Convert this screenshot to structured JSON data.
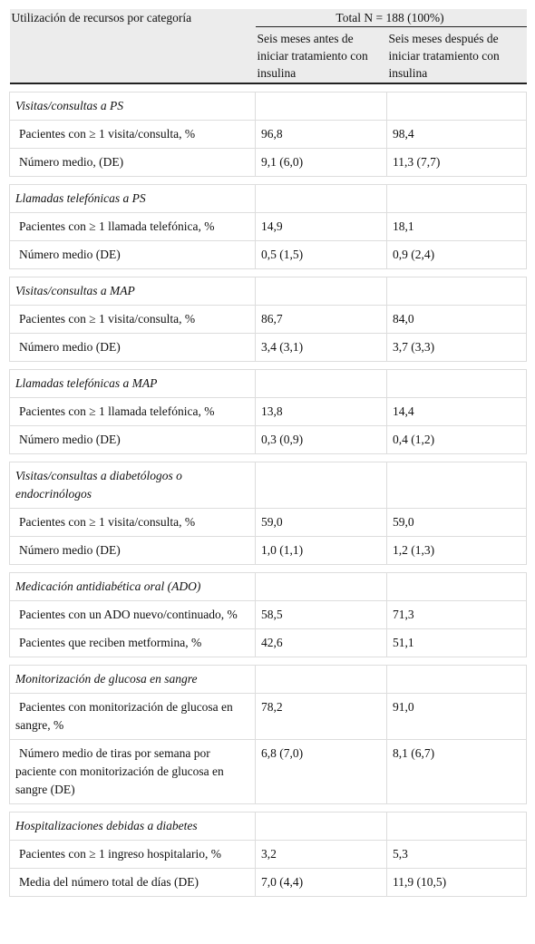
{
  "header": {
    "category": "Utilización de recursos por categoría",
    "total": "Total N = 188 (100%)",
    "before": "Seis meses antes de iniciar tratamiento con insulina",
    "after": "Seis meses después de iniciar tratamiento con insulina"
  },
  "sections": [
    {
      "title": "Visitas/consultas a PS",
      "rows": [
        [
          "Pacientes con ≥ 1 visita/consulta, %",
          "96,8",
          "98,4"
        ],
        [
          "Número medio, (DE)",
          "9,1 (6,0)",
          "11,3 (7,7)"
        ]
      ]
    },
    {
      "title": "Llamadas telefónicas a PS",
      "rows": [
        [
          "Pacientes con ≥ 1 llamada telefónica, %",
          "14,9",
          "18,1"
        ],
        [
          "Número medio (DE)",
          "0,5 (1,5)",
          "0,9 (2,4)"
        ]
      ]
    },
    {
      "title": "Visitas/consultas a MAP",
      "rows": [
        [
          "Pacientes con ≥ 1 visita/consulta, %",
          "86,7",
          "84,0"
        ],
        [
          "Número medio (DE)",
          "3,4 (3,1)",
          "3,7 (3,3)"
        ]
      ]
    },
    {
      "title": "Llamadas telefónicas a MAP",
      "rows": [
        [
          "Pacientes con ≥ 1 llamada telefónica, %",
          "13,8",
          "14,4"
        ],
        [
          "Número medio (DE)",
          "0,3 (0,9)",
          "0,4 (1,2)"
        ]
      ]
    },
    {
      "title": "Visitas/consultas a diabetólogos o endocrinólogos",
      "rows": [
        [
          "Pacientes con ≥ 1 visita/consulta, %",
          "59,0",
          "59,0"
        ],
        [
          "Número medio (DE)",
          "1,0 (1,1)",
          "1,2 (1,3)"
        ]
      ]
    },
    {
      "title": "Medicación antidiabética oral (ADO)",
      "rows": [
        [
          "Pacientes con un ADO nuevo/continuado, %",
          "58,5",
          "71,3"
        ],
        [
          "Pacientes que reciben metformina, %",
          "42,6",
          "51,1"
        ]
      ]
    },
    {
      "title": "Monitorización de glucosa en sangre",
      "rows": [
        [
          "Pacientes con monitorización de glucosa en sangre, %",
          "78,2",
          "91,0"
        ],
        [
          "Número medio de tiras por semana por paciente con monitorización de glucosa en sangre (DE)",
          "6,8 (7,0)",
          "8,1 (6,7)"
        ]
      ]
    },
    {
      "title": "Hospitalizaciones debidas a diabetes",
      "rows": [
        [
          "Pacientes con ≥ 1 ingreso hospitalario, %",
          "3,2",
          "5,3"
        ],
        [
          "Media del número total de días (DE)",
          "7,0 (4,4)",
          "11,9 (10,5)"
        ]
      ]
    }
  ]
}
